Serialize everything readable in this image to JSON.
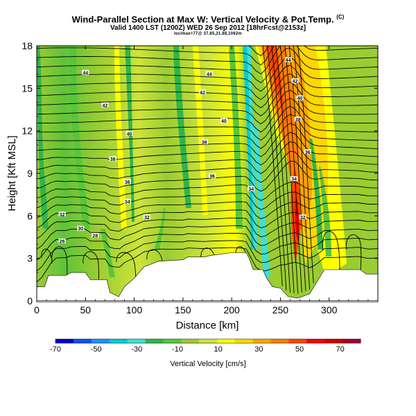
{
  "title": {
    "main": "Wind-Parallel Section at Max W: Vertical Velocity & Pot.Temp.",
    "mark": "(C)",
    "valid": "Valid 1400 LST (1200Z) WED 26 Sep 2012 [18hrFcst@2153z]",
    "location": "loc/max=77@ 37.85,21.88,1062m"
  },
  "colors": {
    "ground": "#ffffff",
    "contour": "#000000",
    "scale": [
      "#0000cd",
      "#0f4ff0",
      "#1e90ff",
      "#00ced1",
      "#40e0d0",
      "#2fb54a",
      "#58c53a",
      "#9acd32",
      "#cde43a",
      "#ffff00",
      "#ffd700",
      "#ffa500",
      "#ff7f00",
      "#ff4500",
      "#ff0000",
      "#cd0000",
      "#a00030"
    ]
  },
  "chart_data": {
    "type": "heatmap",
    "title": "Wind-Parallel Section at Max W: Vertical Velocity & Pot.Temp.",
    "xlabel": "Distance [km]",
    "ylabel": "Height [Kft MSL]",
    "xlim": [
      0,
      350
    ],
    "ylim": [
      0,
      18
    ],
    "xticks": [
      0,
      50,
      100,
      150,
      200,
      250,
      300
    ],
    "yticks": [
      0,
      3,
      6,
      9,
      12,
      15,
      18
    ],
    "colorbar": {
      "label": "Vertical Velocity [cm/s]",
      "range": [
        -70,
        80
      ],
      "ticks": [
        -70,
        -50,
        -30,
        -10,
        10,
        30,
        50,
        70
      ]
    },
    "terrain": [
      [
        0,
        1.0
      ],
      [
        8,
        1.0
      ],
      [
        12,
        1.8
      ],
      [
        30,
        1.8
      ],
      [
        35,
        2.0
      ],
      [
        50,
        2.0
      ],
      [
        55,
        1.5
      ],
      [
        72,
        1.5
      ],
      [
        75,
        0.6
      ],
      [
        84,
        0.3
      ],
      [
        90,
        1.0
      ],
      [
        100,
        1.6
      ],
      [
        110,
        2.4
      ],
      [
        125,
        2.8
      ],
      [
        150,
        2.9
      ],
      [
        155,
        3.1
      ],
      [
        172,
        3.1
      ],
      [
        178,
        3.2
      ],
      [
        200,
        3.4
      ],
      [
        215,
        3.4
      ],
      [
        218,
        3.0
      ],
      [
        222,
        2.2
      ],
      [
        232,
        2.2
      ],
      [
        236,
        1.6
      ],
      [
        242,
        1.0
      ],
      [
        250,
        0.9
      ],
      [
        258,
        0.3
      ],
      [
        268,
        0.2
      ],
      [
        280,
        0.5
      ],
      [
        288,
        1.4
      ],
      [
        295,
        2.2
      ],
      [
        305,
        2.2
      ],
      [
        315,
        2.2
      ],
      [
        332,
        2.2
      ],
      [
        338,
        1.9
      ],
      [
        350,
        1.9
      ]
    ],
    "theta_labels": [
      {
        "label": "44",
        "x": 50,
        "y": 16.1
      },
      {
        "label": "44",
        "x": 177,
        "y": 16.0
      },
      {
        "label": "44",
        "x": 258,
        "y": 17.0
      },
      {
        "label": "42",
        "x": 70,
        "y": 13.8
      },
      {
        "label": "42",
        "x": 170,
        "y": 14.7
      },
      {
        "label": "42",
        "x": 265,
        "y": 15.5
      },
      {
        "label": "40",
        "x": 95,
        "y": 11.8
      },
      {
        "label": "40",
        "x": 192,
        "y": 12.7
      },
      {
        "label": "40",
        "x": 270,
        "y": 14.3
      },
      {
        "label": "38",
        "x": 78,
        "y": 10.0
      },
      {
        "label": "38",
        "x": 172,
        "y": 11.2
      },
      {
        "label": "38",
        "x": 268,
        "y": 12.8
      },
      {
        "label": "36",
        "x": 93,
        "y": 8.4
      },
      {
        "label": "36",
        "x": 180,
        "y": 8.8
      },
      {
        "label": "36",
        "x": 278,
        "y": 10.5
      },
      {
        "label": "34",
        "x": 93,
        "y": 7.0
      },
      {
        "label": "34",
        "x": 220,
        "y": 7.9
      },
      {
        "label": "34",
        "x": 264,
        "y": 8.6
      },
      {
        "label": "32",
        "x": 26,
        "y": 6.1
      },
      {
        "label": "32",
        "x": 113,
        "y": 5.9
      },
      {
        "label": "32",
        "x": 273,
        "y": 5.9
      },
      {
        "label": "30",
        "x": 45,
        "y": 5.1
      },
      {
        "label": "28",
        "x": 60,
        "y": 4.6
      },
      {
        "label": "26",
        "x": 26,
        "y": 4.2
      }
    ]
  }
}
